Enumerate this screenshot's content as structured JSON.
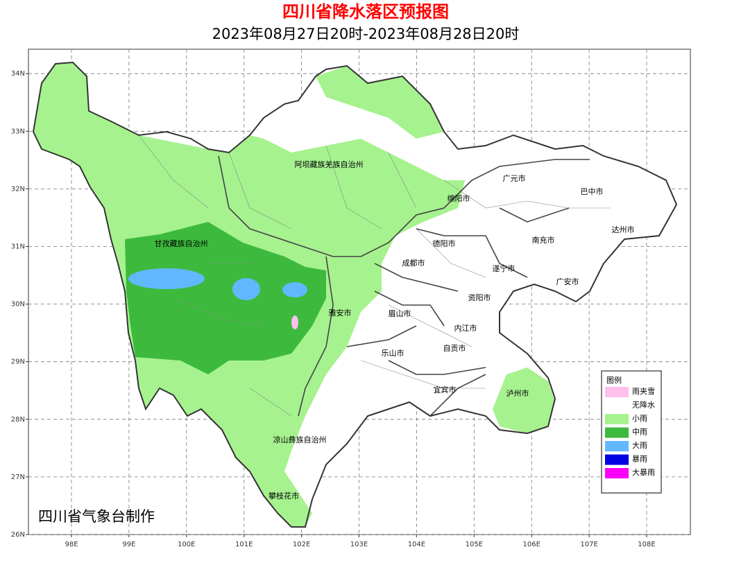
{
  "header": {
    "title": "四川省降水落区预报图",
    "subtitle": "2023年08月27日20时-2023年08月28日20时"
  },
  "map": {
    "lat_ticks": [
      {
        "value": 26,
        "label": "26N"
      },
      {
        "value": 27,
        "label": "27N"
      },
      {
        "value": 28,
        "label": "28N"
      },
      {
        "value": 29,
        "label": "29N"
      },
      {
        "value": 30,
        "label": "30N"
      },
      {
        "value": 31,
        "label": "31N"
      },
      {
        "value": 32,
        "label": "32N"
      },
      {
        "value": 33,
        "label": "33N"
      },
      {
        "value": 34,
        "label": "34N"
      }
    ],
    "lon_ticks": [
      {
        "value": 98,
        "label": "98E"
      },
      {
        "value": 99,
        "label": "99E"
      },
      {
        "value": 100,
        "label": "100E"
      },
      {
        "value": 101,
        "label": "101E"
      },
      {
        "value": 102,
        "label": "102E"
      },
      {
        "value": 103,
        "label": "103E"
      },
      {
        "value": 104,
        "label": "104E"
      },
      {
        "value": 105,
        "label": "105E"
      },
      {
        "value": 106,
        "label": "106E"
      },
      {
        "value": 107,
        "label": "107E"
      },
      {
        "value": 108,
        "label": "108E"
      }
    ],
    "regions": [
      "阿坝藏族羌族自治州",
      "广元市",
      "巴中市",
      "绵阳市",
      "甘孜藏族自治州",
      "德阳市",
      "南充市",
      "达州市",
      "成都市",
      "遂宁市",
      "广安市",
      "资阳市",
      "雅安市",
      "眉山市",
      "内江市",
      "自贡市",
      "乐山市",
      "宜宾市",
      "泸州市",
      "凉山彝族自治州",
      "攀枝花市"
    ]
  },
  "legend": {
    "title": "图例",
    "items": [
      {
        "label": "雨夹雪",
        "color": "#ffc0ee"
      },
      {
        "label": "无降水",
        "color": "#ffffff"
      },
      {
        "label": "小雨",
        "color": "#a6f28f"
      },
      {
        "label": "中雨",
        "color": "#3dba3d"
      },
      {
        "label": "大雨",
        "color": "#61b8ff"
      },
      {
        "label": "暴雨",
        "color": "#0000e1"
      },
      {
        "label": "大暴雨",
        "color": "#fa00fa"
      }
    ]
  },
  "footer": {
    "credit": "四川省气象台制作"
  }
}
